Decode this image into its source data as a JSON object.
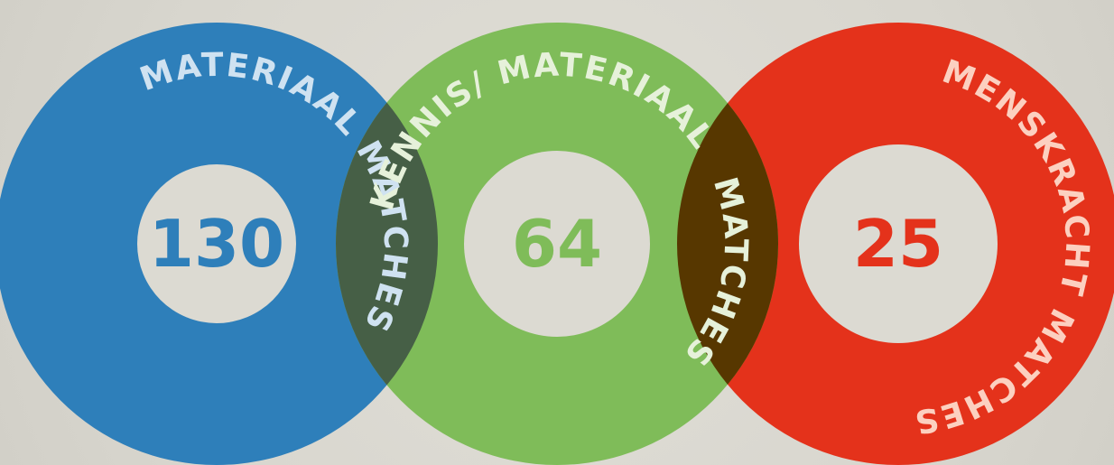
{
  "colors": {
    "background": "#dcdad2",
    "blue": "#2e7fba",
    "green": "#7fbc59",
    "red": "#e4321b",
    "overlap_blue_green": "#465f46",
    "overlap_green_red": "#573700",
    "blue_text": "#cfe2f1",
    "green_text": "#e6f1da",
    "red_text": "#fcd0c0"
  },
  "circles": [
    {
      "id": "materiaal",
      "label": "MATERIAAL MATCHES",
      "count": "130"
    },
    {
      "id": "kennis-materiaal",
      "label_part1": "KENNIS/",
      "label_part2": "MATERIAAL",
      "label_part3": "MATCHES",
      "count": "64"
    },
    {
      "id": "menskracht",
      "label": "MENSKRACHT MATCHES",
      "count": "25"
    }
  ]
}
